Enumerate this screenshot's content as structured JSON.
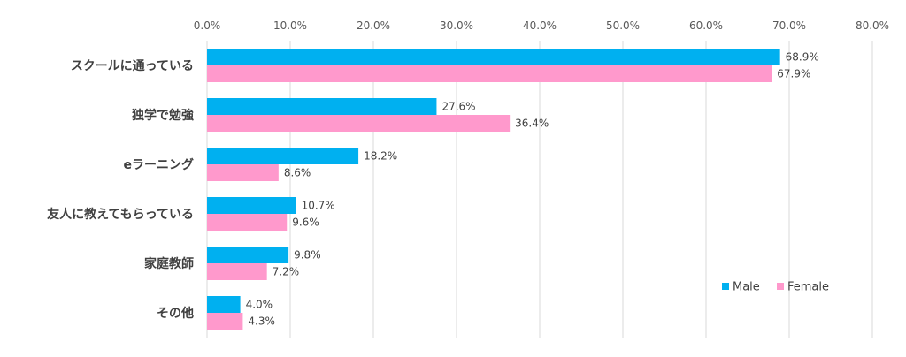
{
  "chart_data": {
    "type": "bar",
    "orientation": "horizontal",
    "categories": [
      "スクールに通っている",
      "独学で勉強",
      "eラーニング",
      "友人に教えてもらっている",
      "家庭教師",
      "その他"
    ],
    "series": [
      {
        "name": "Male",
        "color": "#00b0f0",
        "values": [
          68.9,
          27.6,
          18.2,
          10.7,
          9.8,
          4.0
        ],
        "labels": [
          "68.9%",
          "27.6%",
          "18.2%",
          "10.7%",
          "9.8%",
          "4.0%"
        ]
      },
      {
        "name": "Female",
        "color": "#ff99cc",
        "values": [
          67.9,
          36.4,
          8.6,
          9.6,
          7.2,
          4.3
        ],
        "labels": [
          "67.9%",
          "36.4%",
          "8.6%",
          "9.6%",
          "7.2%",
          "4.3%"
        ]
      }
    ],
    "xlim": [
      0,
      80
    ],
    "xticks": [
      "0.0%",
      "10.0%",
      "20.0%",
      "30.0%",
      "40.0%",
      "50.0%",
      "60.0%",
      "70.0%",
      "80.0%"
    ],
    "grid": true,
    "axis_position": "top",
    "legend_position": "bottom-right"
  }
}
